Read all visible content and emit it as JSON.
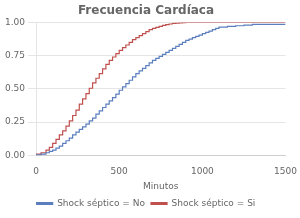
{
  "chart_data": {
    "type": "step",
    "title": "Frecuencia Cardíaca",
    "xlabel": "Minutos",
    "xlim": [
      0,
      1500
    ],
    "ylim": [
      0,
      1.0
    ],
    "xticks": [
      0,
      500,
      1000,
      1500
    ],
    "yticks": [
      {
        "value": 0.0,
        "label": "0.00"
      },
      {
        "value": 0.25,
        "label": "0.25"
      },
      {
        "value": 0.5,
        "label": "0.50"
      },
      {
        "value": 0.75,
        "label": "0.75"
      },
      {
        "value": 1.0,
        "label": "1.00"
      }
    ],
    "grid": true,
    "legend": "bottom",
    "series": [
      {
        "name": "Shock séptico = No",
        "color": "#5b7fbe",
        "x": [
          0,
          30,
          60,
          80,
          100,
          120,
          140,
          160,
          180,
          200,
          220,
          240,
          260,
          280,
          300,
          320,
          340,
          360,
          380,
          400,
          420,
          440,
          460,
          480,
          500,
          520,
          540,
          560,
          580,
          600,
          620,
          640,
          660,
          680,
          700,
          720,
          740,
          760,
          780,
          800,
          820,
          840,
          860,
          880,
          900,
          920,
          940,
          960,
          980,
          1000,
          1020,
          1040,
          1060,
          1080,
          1100,
          1150,
          1200,
          1250,
          1300,
          1350
        ],
        "values": [
          0.0,
          0.005,
          0.01,
          0.02,
          0.03,
          0.04,
          0.055,
          0.07,
          0.09,
          0.11,
          0.13,
          0.155,
          0.175,
          0.195,
          0.215,
          0.235,
          0.26,
          0.28,
          0.31,
          0.335,
          0.36,
          0.385,
          0.41,
          0.435,
          0.46,
          0.49,
          0.515,
          0.54,
          0.565,
          0.59,
          0.615,
          0.635,
          0.655,
          0.675,
          0.695,
          0.715,
          0.73,
          0.745,
          0.76,
          0.775,
          0.79,
          0.805,
          0.82,
          0.835,
          0.85,
          0.865,
          0.875,
          0.885,
          0.895,
          0.905,
          0.915,
          0.925,
          0.935,
          0.945,
          0.955,
          0.965,
          0.97,
          0.975,
          0.98,
          0.985
        ]
      },
      {
        "name": "Shock séptico = Si",
        "color": "#c0504d",
        "x": [
          0,
          30,
          60,
          80,
          100,
          120,
          140,
          160,
          180,
          200,
          220,
          240,
          260,
          280,
          300,
          320,
          340,
          360,
          380,
          400,
          420,
          440,
          460,
          480,
          500,
          520,
          540,
          560,
          580,
          600,
          620,
          640,
          660,
          680,
          700,
          720,
          740,
          760,
          780,
          800,
          820,
          840,
          860,
          880,
          900,
          950
        ],
        "values": [
          0.0,
          0.01,
          0.02,
          0.04,
          0.06,
          0.09,
          0.12,
          0.155,
          0.185,
          0.22,
          0.26,
          0.3,
          0.34,
          0.385,
          0.425,
          0.465,
          0.505,
          0.545,
          0.58,
          0.615,
          0.65,
          0.685,
          0.715,
          0.74,
          0.765,
          0.79,
          0.81,
          0.83,
          0.85,
          0.87,
          0.885,
          0.9,
          0.915,
          0.93,
          0.945,
          0.955,
          0.963,
          0.97,
          0.977,
          0.984,
          0.988,
          0.992,
          0.995,
          0.997,
          0.999,
          1.0
        ]
      }
    ]
  }
}
